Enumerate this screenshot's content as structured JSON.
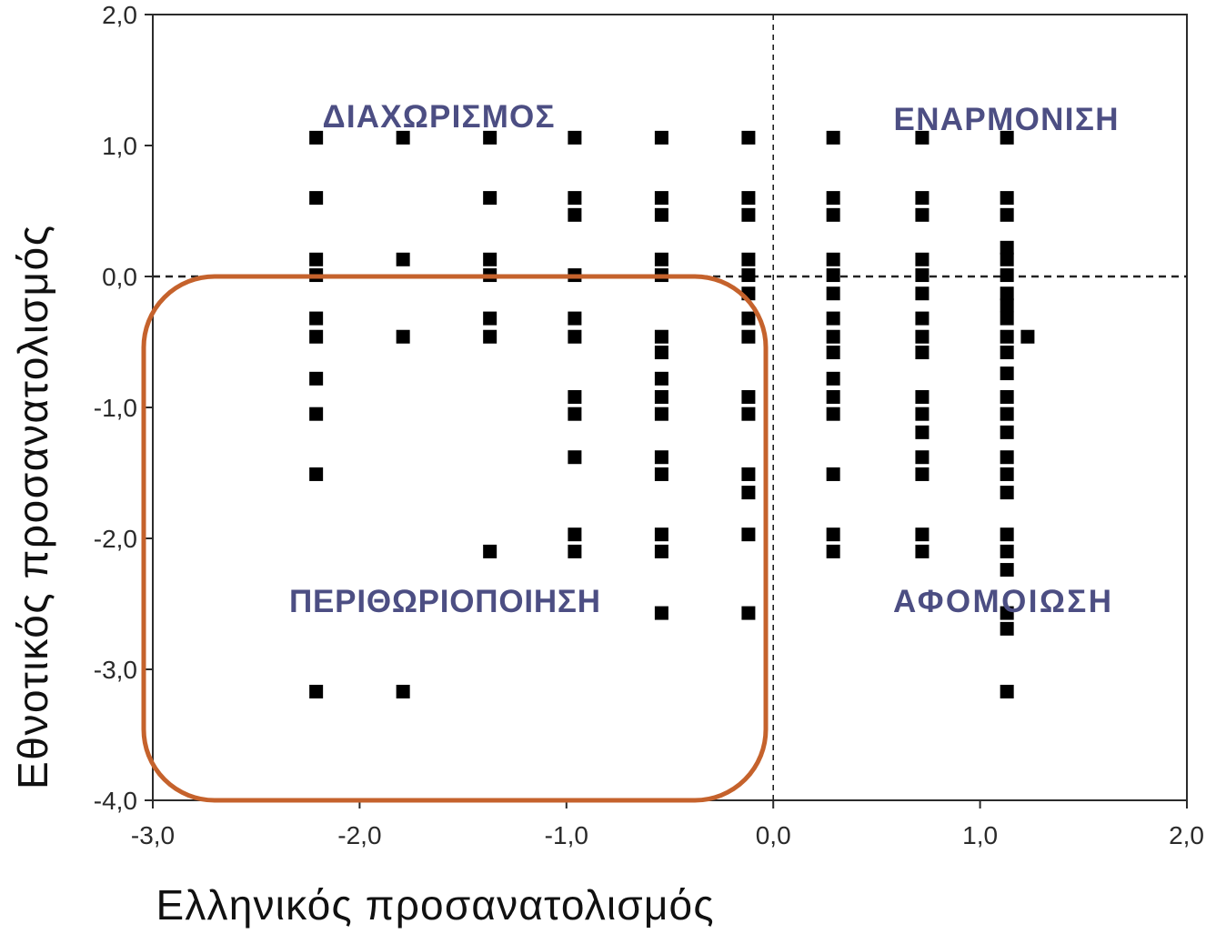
{
  "chart_data": {
    "type": "scatter",
    "title": "",
    "xlabel": "Ελληνικός προσανατολισμός",
    "ylabel": "Εθνοτικός προσανατολισμός",
    "xlim": [
      -3,
      2
    ],
    "ylim": [
      -4,
      2
    ],
    "x_ticks": {
      "values": [
        -3,
        -2,
        -1,
        0,
        1,
        2
      ],
      "labels": [
        "-3,0",
        "-2,0",
        "-1,0",
        "0,0",
        "1,0",
        "2,0"
      ]
    },
    "y_ticks": {
      "values": [
        2,
        1,
        0,
        -1,
        -2,
        -3,
        -4
      ],
      "labels": [
        "2,0",
        "1,0",
        "0,0",
        "-1,0",
        "-2,0",
        "-3,0",
        "-4,0"
      ]
    },
    "grid": false,
    "legend": "none",
    "reference_lines": {
      "x": 0,
      "y": 0,
      "style": "dashed"
    },
    "marker": "square",
    "colors": {
      "marker": "#000000",
      "annotation": "#4c4e83",
      "highlight": "#c5622c",
      "axis": "#2b2b2b",
      "reference": "#222222"
    },
    "annotations": [
      {
        "text": "ΔΙΑΧΩΡΙΣΜΟΣ",
        "quadrant": "top-left"
      },
      {
        "text": "ΕΝΑΡΜΟΝΙΣΗ",
        "quadrant": "top-right"
      },
      {
        "text": "ΠΕΡΙΘΩΡΙΟΠΟΙΗΣΗ",
        "quadrant": "bottom-left"
      },
      {
        "text": "ΑΦΟΜΟΙΩΣΗ",
        "quadrant": "bottom-right"
      }
    ],
    "highlight": {
      "region": "bottom-left",
      "shape": "rounded-rectangle"
    },
    "series": [
      {
        "points": [
          [
            -2.21,
            1.06
          ],
          [
            -2.21,
            0.6
          ],
          [
            -2.21,
            0.13
          ],
          [
            -2.21,
            0.01
          ],
          [
            -2.21,
            -0.32
          ],
          [
            -2.21,
            -0.46
          ],
          [
            -2.21,
            -0.78
          ],
          [
            -2.21,
            -1.05
          ],
          [
            -2.21,
            -1.51
          ],
          [
            -2.21,
            -3.17
          ],
          [
            -1.79,
            1.06
          ],
          [
            -1.79,
            0.13
          ],
          [
            -1.79,
            -0.46
          ],
          [
            -1.79,
            -3.17
          ],
          [
            -1.37,
            1.06
          ],
          [
            -1.37,
            0.6
          ],
          [
            -1.37,
            0.13
          ],
          [
            -1.37,
            0.01
          ],
          [
            -1.37,
            -0.32
          ],
          [
            -1.37,
            -0.46
          ],
          [
            -1.37,
            -2.1
          ],
          [
            -0.96,
            1.06
          ],
          [
            -0.96,
            0.6
          ],
          [
            -0.96,
            0.47
          ],
          [
            -0.96,
            0.01
          ],
          [
            -0.96,
            -0.32
          ],
          [
            -0.96,
            -0.46
          ],
          [
            -0.96,
            -0.92
          ],
          [
            -0.96,
            -1.05
          ],
          [
            -0.96,
            -1.38
          ],
          [
            -0.96,
            -1.97
          ],
          [
            -0.96,
            -2.1
          ],
          [
            -0.54,
            1.06
          ],
          [
            -0.54,
            0.6
          ],
          [
            -0.54,
            0.47
          ],
          [
            -0.54,
            0.13
          ],
          [
            -0.54,
            0.01
          ],
          [
            -0.54,
            -0.46
          ],
          [
            -0.54,
            -0.58
          ],
          [
            -0.54,
            -0.78
          ],
          [
            -0.54,
            -0.92
          ],
          [
            -0.54,
            -1.05
          ],
          [
            -0.54,
            -1.38
          ],
          [
            -0.54,
            -1.51
          ],
          [
            -0.54,
            -1.97
          ],
          [
            -0.54,
            -2.1
          ],
          [
            -0.54,
            -2.57
          ],
          [
            -0.12,
            1.06
          ],
          [
            -0.12,
            0.6
          ],
          [
            -0.12,
            0.47
          ],
          [
            -0.12,
            0.13
          ],
          [
            -0.12,
            0.01
          ],
          [
            -0.12,
            -0.13
          ],
          [
            -0.12,
            -0.32
          ],
          [
            -0.12,
            -0.46
          ],
          [
            -0.12,
            -0.92
          ],
          [
            -0.12,
            -1.05
          ],
          [
            -0.12,
            -1.51
          ],
          [
            -0.12,
            -1.65
          ],
          [
            -0.12,
            -1.97
          ],
          [
            -0.12,
            -2.57
          ],
          [
            0.29,
            1.06
          ],
          [
            0.29,
            0.6
          ],
          [
            0.29,
            0.47
          ],
          [
            0.29,
            0.13
          ],
          [
            0.29,
            0.01
          ],
          [
            0.29,
            -0.13
          ],
          [
            0.29,
            -0.32
          ],
          [
            0.29,
            -0.46
          ],
          [
            0.29,
            -0.58
          ],
          [
            0.29,
            -0.78
          ],
          [
            0.29,
            -0.92
          ],
          [
            0.29,
            -1.05
          ],
          [
            0.29,
            -1.51
          ],
          [
            0.29,
            -1.97
          ],
          [
            0.29,
            -2.1
          ],
          [
            0.72,
            1.06
          ],
          [
            0.72,
            0.6
          ],
          [
            0.72,
            0.47
          ],
          [
            0.72,
            0.13
          ],
          [
            0.72,
            0.01
          ],
          [
            0.72,
            -0.13
          ],
          [
            0.72,
            -0.32
          ],
          [
            0.72,
            -0.46
          ],
          [
            0.72,
            -0.58
          ],
          [
            0.72,
            -0.92
          ],
          [
            0.72,
            -1.05
          ],
          [
            0.72,
            -1.19
          ],
          [
            0.72,
            -1.38
          ],
          [
            0.72,
            -1.51
          ],
          [
            0.72,
            -1.97
          ],
          [
            0.72,
            -2.1
          ],
          [
            1.13,
            1.06
          ],
          [
            1.13,
            0.6
          ],
          [
            1.13,
            0.47
          ],
          [
            1.13,
            0.22
          ],
          [
            1.13,
            0.13
          ],
          [
            1.13,
            0.01
          ],
          [
            1.13,
            -0.13
          ],
          [
            1.13,
            -0.22
          ],
          [
            1.13,
            -0.32
          ],
          [
            1.13,
            -0.46
          ],
          [
            1.13,
            -0.58
          ],
          [
            1.13,
            -0.74
          ],
          [
            1.13,
            -0.92
          ],
          [
            1.13,
            -1.05
          ],
          [
            1.13,
            -1.19
          ],
          [
            1.13,
            -1.38
          ],
          [
            1.13,
            -1.51
          ],
          [
            1.13,
            -1.65
          ],
          [
            1.13,
            -1.97
          ],
          [
            1.13,
            -2.1
          ],
          [
            1.13,
            -2.24
          ],
          [
            1.13,
            -2.57
          ],
          [
            1.13,
            -2.69
          ],
          [
            1.13,
            -3.17
          ],
          [
            1.23,
            -0.46
          ]
        ]
      }
    ]
  }
}
